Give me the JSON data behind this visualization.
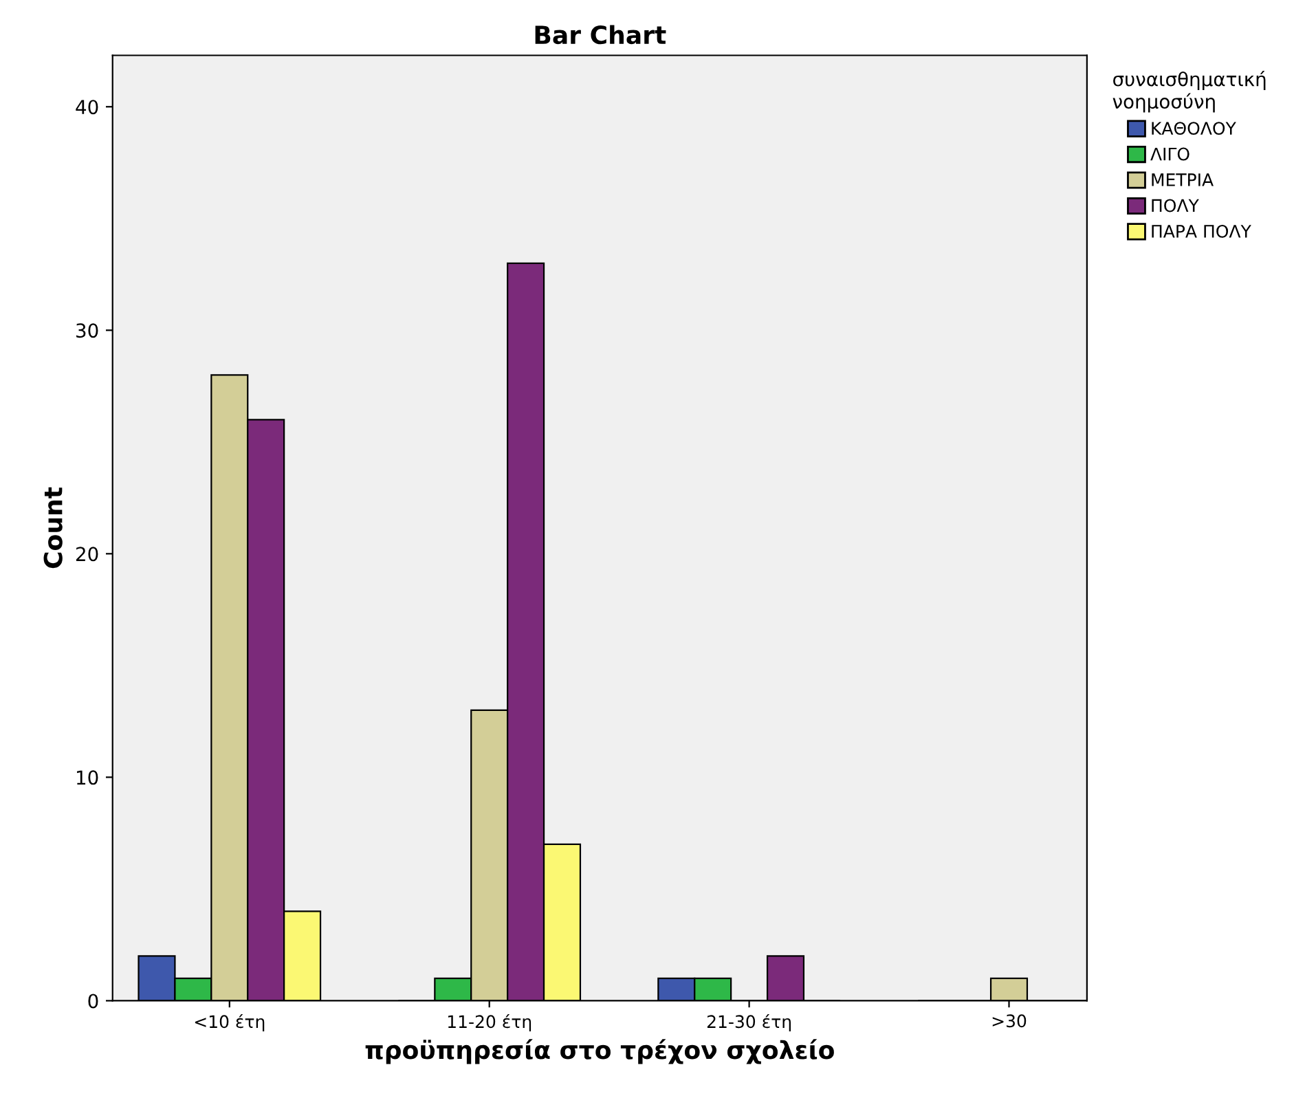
{
  "chart_data": {
    "type": "bar",
    "title": "Bar Chart",
    "xlabel": "προϋπηρεσία στο τρέχον σχολείο",
    "ylabel": "Count",
    "legend_title": "συναισθηματική\nνοημοσύνη",
    "categories": [
      "<10 έτη",
      "11-20 έτη",
      "21-30 έτη",
      ">30"
    ],
    "series": [
      {
        "name": "ΚΑΘΟΛΟΥ",
        "color": "#3e58ac",
        "values": [
          2,
          0,
          1,
          0
        ]
      },
      {
        "name": "ΛΙΓΟ",
        "color": "#2eb848",
        "values": [
          1,
          1,
          1,
          0
        ]
      },
      {
        "name": "ΜΕΤΡΙΑ",
        "color": "#d3ce97",
        "values": [
          28,
          13,
          0,
          1
        ]
      },
      {
        "name": "ΠΟΛΥ",
        "color": "#7b2a7a",
        "values": [
          26,
          33,
          2,
          0
        ]
      },
      {
        "name": "ΠΑΡΑ ΠΟΛΥ",
        "color": "#fbf873",
        "values": [
          4,
          7,
          0,
          0
        ]
      }
    ],
    "ylim": [
      0,
      42.3
    ],
    "yticks": [
      0,
      10,
      20,
      30,
      40
    ],
    "grid": false,
    "legend": "right"
  }
}
